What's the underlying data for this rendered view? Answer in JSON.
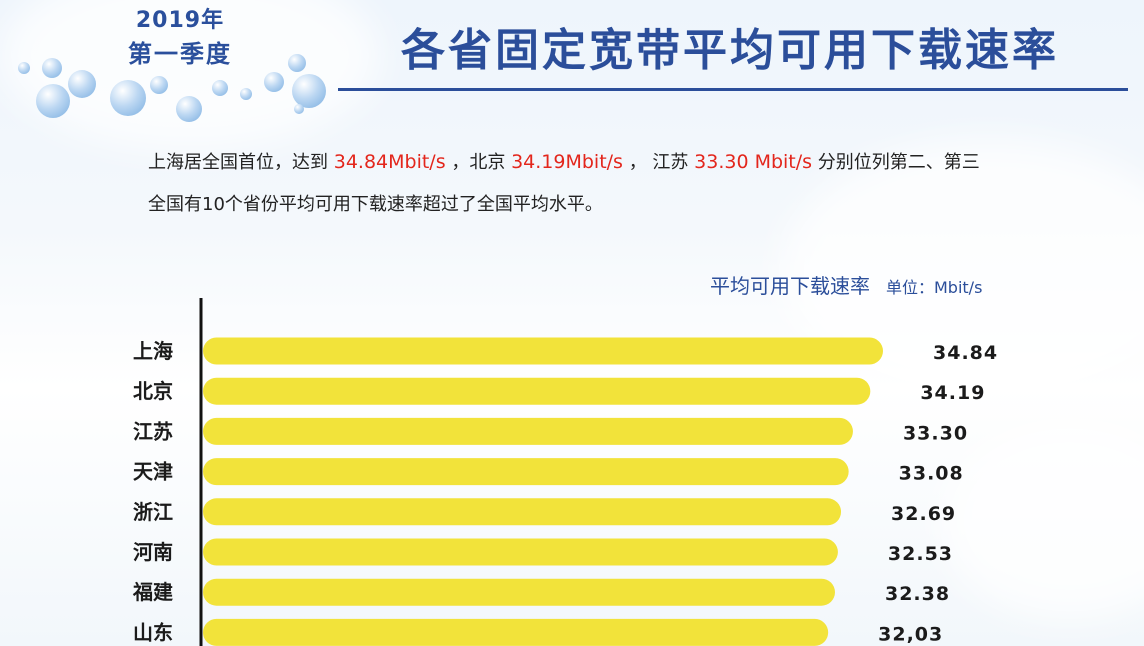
{
  "header": {
    "year": "2019年",
    "season": "第一季度",
    "title": "各省固定宽带平均可用下载速率"
  },
  "summary": {
    "line1_prefix": "上海居全国首位，达到 ",
    "line1_v1": "34.84Mbit/s",
    "line1_mid1": " ，北京 ",
    "line1_v2": "34.19Mbit/s",
    "line1_mid2": " ， 江苏 ",
    "line1_v3": "33.30 Mbit/s",
    "line1_suffix": " 分别位列第二、第三",
    "line2": "全国有10个省份平均可用下载速率超过了全国平均水平。"
  },
  "chart_heading": {
    "title": "平均可用下载速率",
    "unit": "单位：Mbit/s"
  },
  "colors": {
    "bar": "#f2e33a",
    "title": "#2b4e9a",
    "highlight": "#e3261c"
  },
  "chart_data": {
    "type": "bar",
    "orientation": "horizontal",
    "title": "平均可用下载速率",
    "unit": "单位：Mbit/s",
    "categories": [
      "上海",
      "北京",
      "江苏",
      "天津",
      "浙江",
      "河南",
      "福建",
      "山东"
    ],
    "values": [
      34.84,
      34.19,
      33.3,
      33.08,
      32.69,
      32.53,
      32.38,
      32.03
    ],
    "value_labels": [
      "34.84",
      "34.19",
      "33.30",
      "33.08",
      "32.69",
      "32.53",
      "32.38",
      "32,03"
    ],
    "grid": false,
    "legend": "none"
  }
}
